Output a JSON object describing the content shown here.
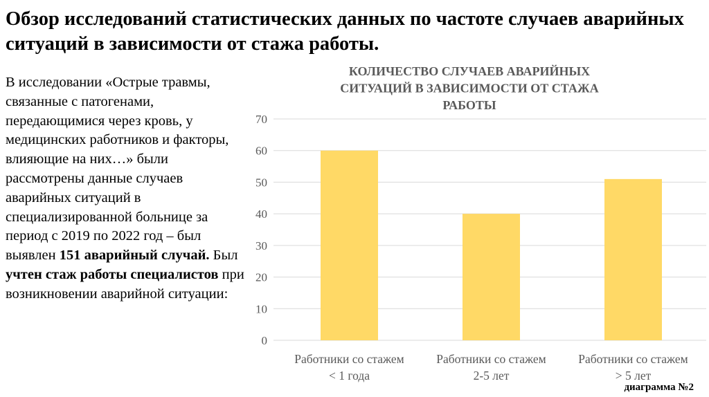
{
  "slide": {
    "title": "Обзор исследований статистических данных по частоте случаев аварийных ситуаций в зависимости от стажа работы.",
    "body_segments": [
      {
        "text": "В исследовании «Острые травмы, связанные с патогенами, передающимися через кровь, у медицинских работников и факторы, влияющие на них…» были рассмотрены данные случаев аварийных ситуаций в специализированной больнице за период с 2019 по 2022 год – был выявлен ",
        "bold": false
      },
      {
        "text": "151 аварийный случай.",
        "bold": true
      },
      {
        "text": " Был ",
        "bold": false
      },
      {
        "text": "учтен стаж работы специалистов",
        "bold": true
      },
      {
        "text": " при возникновении аварийной ситуации:",
        "bold": false
      }
    ],
    "caption": "диаграмма №2"
  },
  "chart_data": {
    "type": "bar",
    "title": "КОЛИЧЕСТВО СЛУЧАЕВ АВАРИЙНЫХ СИТУАЦИЙ В ЗАВИСИМОСТИ ОТ СТАЖА РАБОТЫ",
    "title_lines": [
      "КОЛИЧЕСТВО СЛУЧАЕВ АВАРИЙНЫХ",
      "СИТУАЦИЙ В ЗАВИСИМОСТИ ОТ СТАЖА",
      "РАБОТЫ"
    ],
    "categories": [
      [
        "Работники со стажем",
        "< 1 года"
      ],
      [
        "Работники со стажем",
        "2-5 лет"
      ],
      [
        "Работники со стажем",
        "> 5 лет"
      ]
    ],
    "values": [
      60,
      40,
      51
    ],
    "ylim": [
      0,
      70
    ],
    "yticks": [
      0,
      10,
      20,
      30,
      40,
      50,
      60,
      70
    ],
    "grid": true,
    "bar_color": "#FFD966",
    "title_color": "#595959",
    "xlabel": "",
    "ylabel": ""
  }
}
